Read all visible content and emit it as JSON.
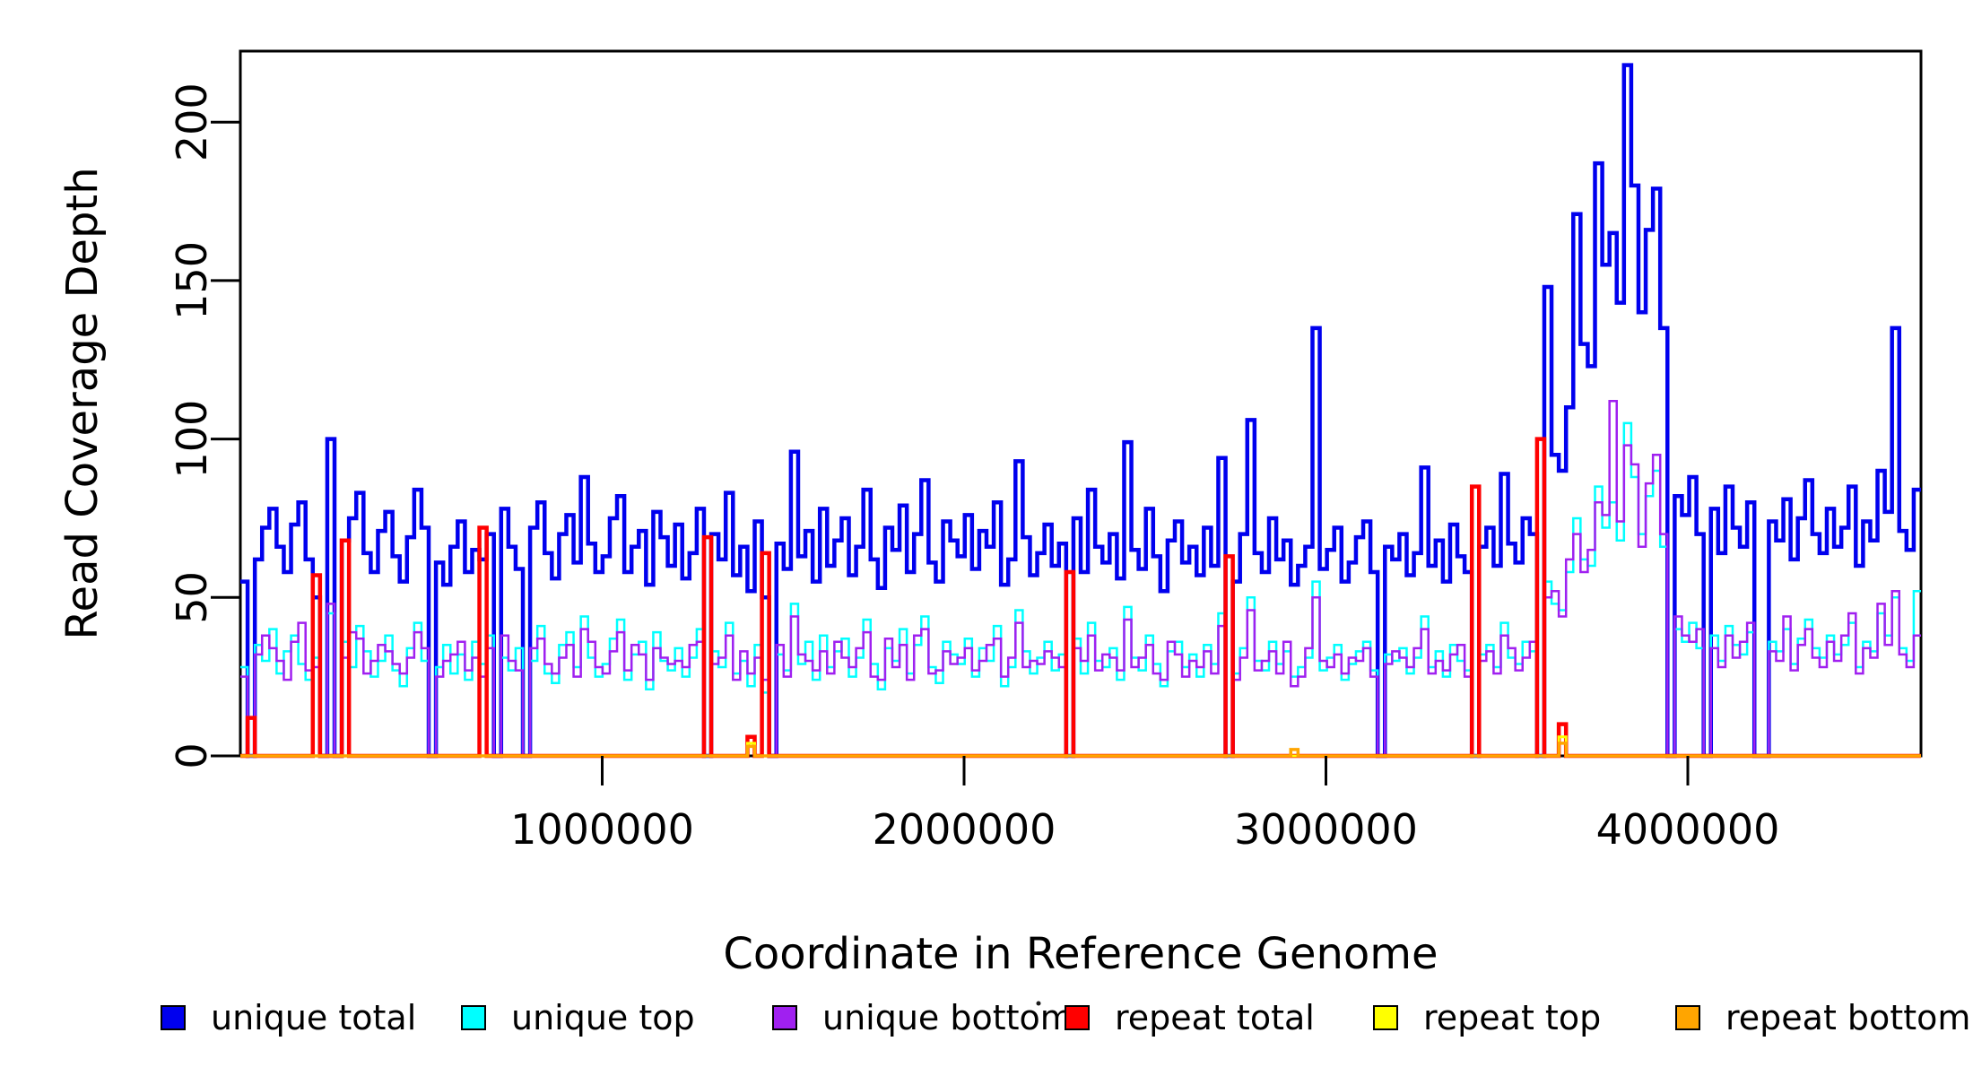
{
  "figure": {
    "title": "",
    "ylabel": "Read Coverage Depth",
    "xlabel": "Coordinate in Reference Genome",
    "background_color": "#ffffff",
    "axis_color": "#000000"
  },
  "axes": {
    "x_ticks": [
      {
        "value": 1000000,
        "label": "1000000"
      },
      {
        "value": 2000000,
        "label": "2000000"
      },
      {
        "value": 3000000,
        "label": "3000000"
      },
      {
        "value": 4000000,
        "label": "4000000"
      }
    ],
    "y_ticks": [
      {
        "value": 0,
        "label": "0"
      },
      {
        "value": 50,
        "label": "50"
      },
      {
        "value": 100,
        "label": "100"
      },
      {
        "value": 150,
        "label": "150"
      },
      {
        "value": 200,
        "label": "200"
      }
    ]
  },
  "legend": [
    {
      "label": "unique total",
      "color": "#0000EE"
    },
    {
      "label": "unique top",
      "color": "#00FFFF"
    },
    {
      "label": "unique bottom",
      "color": "#A020F0"
    },
    {
      "label": "repeat total",
      "color": "#FF0000"
    },
    {
      "label": "repeat top",
      "color": "#FFFF00"
    },
    {
      "label": "repeat bottom",
      "color": "#FFA500"
    }
  ],
  "chart_data": {
    "type": "line",
    "step": true,
    "title": "",
    "xlabel": "Coordinate in Reference Genome",
    "ylabel": "Read Coverage Depth",
    "grid": false,
    "legend_position": "bottom",
    "bins": 232,
    "bin_size": 20000,
    "x_start": 0,
    "xlim": [
      0,
      4644000
    ],
    "ylim": [
      0,
      222
    ],
    "series": [
      {
        "name": "unique total",
        "color": "#0000EE",
        "linewidth": 4.5,
        "values": [
          55,
          0,
          62,
          72,
          78,
          66,
          58,
          73,
          80,
          62,
          50,
          0,
          100,
          0,
          68,
          75,
          83,
          64,
          58,
          71,
          77,
          63,
          55,
          69,
          84,
          72,
          0,
          61,
          54,
          66,
          74,
          58,
          65,
          62,
          70,
          0,
          78,
          66,
          59,
          0,
          72,
          80,
          64,
          56,
          70,
          76,
          61,
          88,
          67,
          58,
          63,
          75,
          82,
          58,
          66,
          71,
          54,
          77,
          69,
          60,
          73,
          56,
          64,
          78,
          0,
          70,
          62,
          83,
          57,
          66,
          52,
          74,
          50,
          0,
          67,
          59,
          96,
          63,
          71,
          55,
          78,
          60,
          68,
          75,
          57,
          66,
          84,
          62,
          53,
          72,
          65,
          79,
          58,
          70,
          87,
          61,
          55,
          74,
          68,
          63,
          76,
          59,
          71,
          66,
          80,
          54,
          62,
          93,
          69,
          57,
          64,
          73,
          60,
          67,
          0,
          75,
          58,
          84,
          66,
          61,
          70,
          56,
          99,
          65,
          59,
          78,
          63,
          52,
          68,
          74,
          61,
          66,
          57,
          72,
          60,
          94,
          0,
          55,
          70,
          106,
          64,
          58,
          75,
          62,
          68,
          54,
          60,
          66,
          135,
          59,
          65,
          72,
          55,
          61,
          69,
          74,
          58,
          0,
          66,
          62,
          70,
          57,
          64,
          91,
          60,
          68,
          55,
          73,
          63,
          58,
          0,
          66,
          72,
          60,
          89,
          67,
          61,
          75,
          70,
          0,
          148,
          95,
          90,
          110,
          171,
          130,
          123,
          187,
          155,
          165,
          143,
          218,
          180,
          140,
          166,
          179,
          135,
          0,
          82,
          76,
          88,
          70,
          0,
          78,
          64,
          85,
          72,
          66,
          80,
          0,
          0,
          74,
          68,
          81,
          62,
          75,
          87,
          70,
          64,
          78,
          66,
          72,
          85,
          60,
          74,
          68,
          90,
          77,
          135,
          71,
          65,
          84
        ]
      },
      {
        "name": "unique top",
        "color": "#00FFFF",
        "linewidth": 2.5,
        "values": [
          28,
          0,
          35,
          30,
          40,
          26,
          33,
          38,
          29,
          24,
          31,
          0,
          45,
          0,
          36,
          28,
          41,
          33,
          25,
          30,
          38,
          27,
          22,
          34,
          42,
          30,
          0,
          28,
          35,
          26,
          32,
          24,
          36,
          29,
          38,
          0,
          31,
          27,
          34,
          0,
          30,
          41,
          26,
          23,
          35,
          39,
          28,
          44,
          31,
          25,
          29,
          37,
          43,
          24,
          32,
          36,
          21,
          39,
          30,
          27,
          34,
          25,
          31,
          40,
          0,
          33,
          28,
          42,
          26,
          30,
          22,
          35,
          20,
          0,
          32,
          27,
          48,
          29,
          36,
          24,
          38,
          28,
          33,
          37,
          25,
          31,
          43,
          29,
          21,
          34,
          30,
          40,
          26,
          35,
          44,
          28,
          23,
          36,
          32,
          29,
          37,
          25,
          34,
          30,
          41,
          22,
          28,
          46,
          33,
          26,
          31,
          36,
          27,
          32,
          0,
          37,
          26,
          42,
          30,
          28,
          34,
          24,
          47,
          31,
          27,
          38,
          29,
          22,
          33,
          36,
          28,
          32,
          25,
          35,
          29,
          45,
          0,
          26,
          34,
          50,
          30,
          27,
          36,
          29,
          33,
          25,
          28,
          31,
          55,
          27,
          31,
          35,
          24,
          29,
          33,
          36,
          27,
          0,
          32,
          30,
          34,
          26,
          31,
          44,
          28,
          33,
          25,
          35,
          30,
          27,
          0,
          32,
          35,
          28,
          42,
          31,
          29,
          36,
          33,
          0,
          55,
          48,
          46,
          58,
          75,
          62,
          60,
          85,
          72,
          80,
          68,
          105,
          88,
          70,
          82,
          90,
          66,
          0,
          40,
          36,
          42,
          34,
          0,
          38,
          30,
          41,
          35,
          32,
          39,
          0,
          0,
          36,
          33,
          40,
          29,
          37,
          43,
          34,
          31,
          38,
          32,
          35,
          42,
          28,
          36,
          33,
          45,
          38,
          50,
          34,
          30,
          52
        ]
      },
      {
        "name": "unique bottom",
        "color": "#A020F0",
        "linewidth": 2.5,
        "values": [
          25,
          0,
          32,
          38,
          34,
          30,
          24,
          36,
          42,
          27,
          28,
          0,
          48,
          0,
          31,
          39,
          37,
          26,
          30,
          35,
          33,
          29,
          26,
          31,
          39,
          34,
          0,
          25,
          30,
          32,
          36,
          27,
          31,
          25,
          34,
          0,
          38,
          30,
          27,
          0,
          34,
          37,
          29,
          26,
          31,
          35,
          25,
          40,
          36,
          28,
          26,
          33,
          39,
          27,
          35,
          32,
          24,
          34,
          31,
          29,
          30,
          28,
          35,
          36,
          0,
          29,
          31,
          38,
          24,
          33,
          26,
          31,
          24,
          0,
          35,
          25,
          44,
          32,
          30,
          27,
          33,
          26,
          36,
          31,
          28,
          34,
          39,
          25,
          24,
          37,
          28,
          35,
          24,
          38,
          40,
          26,
          27,
          33,
          29,
          31,
          34,
          27,
          30,
          35,
          37,
          25,
          31,
          42,
          28,
          30,
          29,
          33,
          31,
          28,
          0,
          34,
          30,
          38,
          27,
          32,
          31,
          27,
          43,
          28,
          31,
          35,
          26,
          24,
          36,
          32,
          25,
          30,
          28,
          33,
          26,
          41,
          0,
          24,
          31,
          46,
          27,
          30,
          33,
          26,
          36,
          22,
          25,
          34,
          50,
          30,
          28,
          32,
          26,
          31,
          30,
          34,
          25,
          0,
          29,
          33,
          31,
          28,
          34,
          40,
          26,
          30,
          27,
          32,
          35,
          25,
          0,
          30,
          33,
          26,
          38,
          34,
          27,
          31,
          36,
          0,
          50,
          52,
          44,
          62,
          70,
          58,
          65,
          80,
          76,
          112,
          74,
          98,
          92,
          66,
          86,
          95,
          70,
          0,
          44,
          38,
          36,
          40,
          0,
          34,
          28,
          38,
          31,
          36,
          42,
          0,
          0,
          33,
          30,
          44,
          27,
          35,
          40,
          31,
          28,
          36,
          30,
          38,
          45,
          26,
          34,
          31,
          48,
          35,
          52,
          32,
          28,
          38
        ]
      },
      {
        "name": "repeat total",
        "color": "#FF0000",
        "linewidth": 4.5,
        "base": 0,
        "spikes": {
          "1": 12,
          "10": 57,
          "14": 68,
          "33": 72,
          "64": 69,
          "70": 6,
          "72": 64,
          "114": 58,
          "136": 63,
          "170": 85,
          "179": 100,
          "182": 10
        }
      },
      {
        "name": "repeat top",
        "color": "#FFFF00",
        "linewidth": 3,
        "base": 0,
        "spikes": {
          "70": 4,
          "182": 6
        }
      },
      {
        "name": "repeat bottom",
        "color": "#FFA500",
        "linewidth": 3.5,
        "base": 0,
        "spikes": {
          "70": 3,
          "145": 2,
          "182": 4
        }
      }
    ]
  }
}
